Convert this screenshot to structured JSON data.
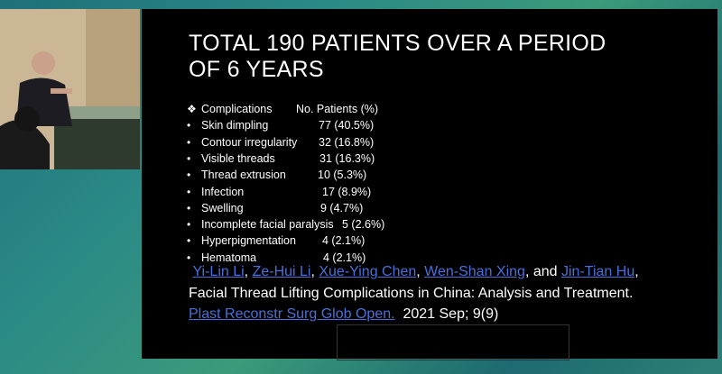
{
  "slide": {
    "title_lines": [
      "TOTAL 190 PATIENTS OVER A PERIOD",
      "OF 6 YEARS"
    ],
    "header": {
      "name": "Complications",
      "value": "No. Patients (%)"
    },
    "items": [
      {
        "name": "Skin dimpling",
        "value": "77 (40.5%)"
      },
      {
        "name": "Contour irregularity",
        "value": "32 (16.8%)"
      },
      {
        "name": "Visible threads",
        "value": "31 (16.3%)"
      },
      {
        "name": "Thread extrusion",
        "value": "10 (5.3%)"
      },
      {
        "name": "Infection",
        "value": "17 (8.9%)"
      },
      {
        "name": "Swelling",
        "value": "9 (4.7%)"
      },
      {
        "name": "Incomplete facial paralysis",
        "value": "5 (2.6%)"
      },
      {
        "name": "Hyperpigmentation",
        "value": "4 (2.1%)"
      },
      {
        "name": "Hematoma",
        "value": "4 (2.1%)"
      }
    ],
    "authors": [
      "Yi-Lin Li",
      "Ze-Hui Li",
      "Xue-Ying Chen",
      "Wen-Shan Xing",
      "Jin-Tian Hu"
    ],
    "and": "and",
    "article": "Facial Thread Lifting Complications in China: Analysis and Treatment.",
    "journal": "Plast Reconstr Surg Glob Open.",
    "date": "2021 Sep; 9(9)"
  }
}
